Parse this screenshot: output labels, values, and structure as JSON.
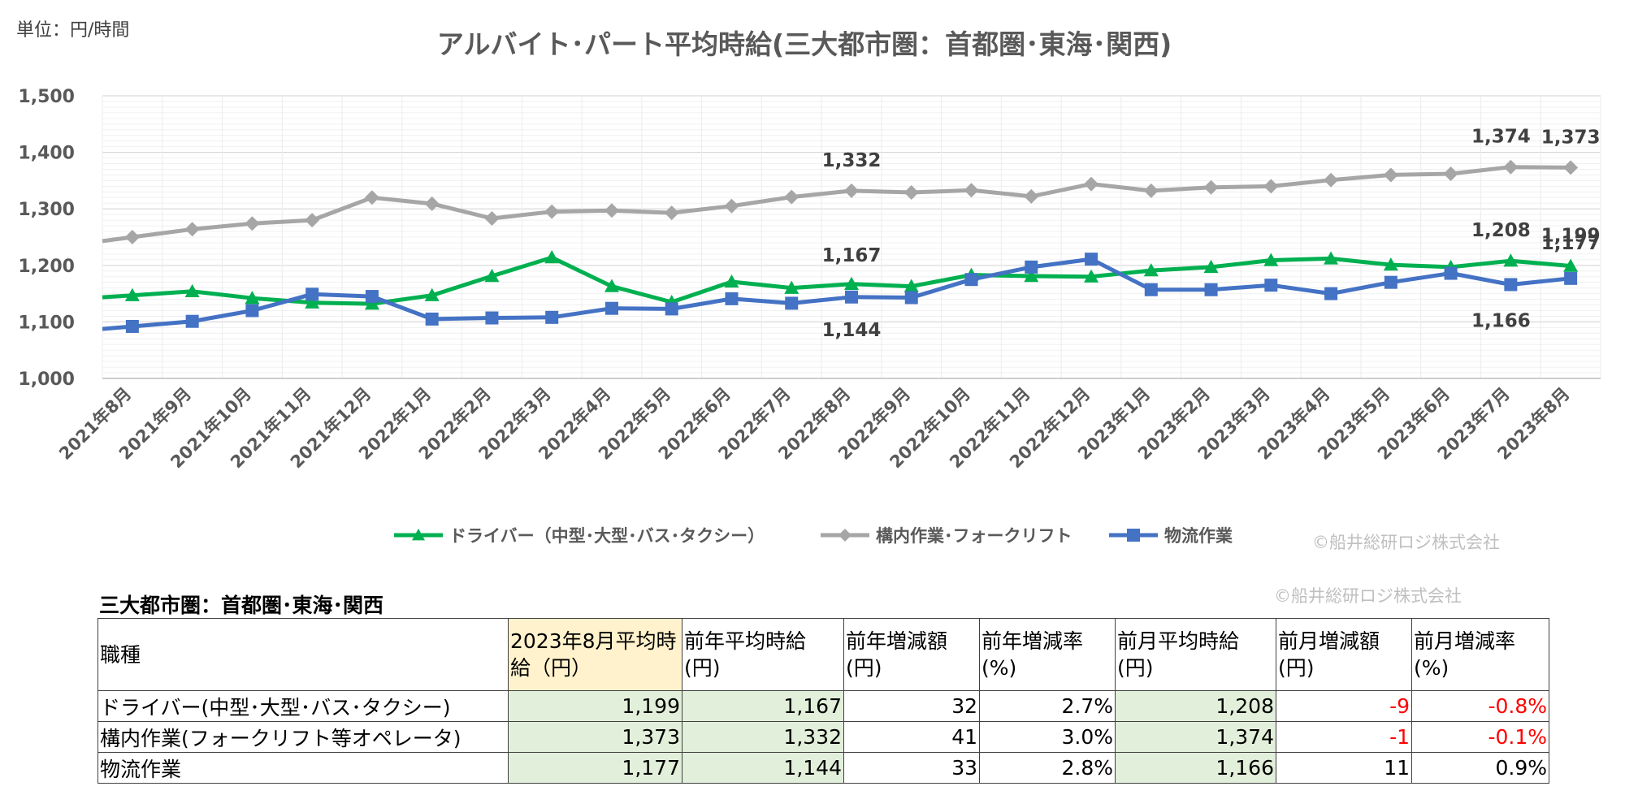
{
  "unit_label": "単位：円/時間",
  "credit": "©船井総研ロジ株式会社",
  "chart_data": {
    "type": "line",
    "title": "アルバイト･パート平均時給(三大都市圏：首都圏･東海･関西)",
    "categories": [
      "2021年8月",
      "2021年9月",
      "2021年10月",
      "2021年11月",
      "2021年12月",
      "2022年1月",
      "2022年2月",
      "2022年3月",
      "2022年4月",
      "2022年5月",
      "2022年6月",
      "2022年7月",
      "2022年8月",
      "2022年9月",
      "2022年10月",
      "2022年11月",
      "2022年12月",
      "2023年1月",
      "2023年2月",
      "2023年3月",
      "2023年4月",
      "2023年5月",
      "2023年6月",
      "2023年7月",
      "2023年8月"
    ],
    "yticks": [
      "1,000",
      "1,100",
      "1,200",
      "1,300",
      "1,400",
      "1,500"
    ],
    "ylim": [
      1000,
      1500
    ],
    "grid": true,
    "legend_position": "bottom",
    "series": [
      {
        "name": "ドライバー（中型･大型･バス･タクシー）",
        "color": "#00b050",
        "marker": "triangle",
        "values": [
          1147,
          1154,
          1142,
          1134,
          1132,
          1147,
          1181,
          1214,
          1163,
          1135,
          1171,
          1160,
          1167,
          1163,
          1183,
          1181,
          1180,
          1191,
          1197,
          1209,
          1212,
          1201,
          1197,
          1208,
          1199
        ]
      },
      {
        "name": "構内作業･フォークリフト",
        "color": "#a6a6a6",
        "marker": "diamond",
        "values": [
          1250,
          1264,
          1274,
          1280,
          1320,
          1309,
          1283,
          1295,
          1297,
          1293,
          1305,
          1321,
          1332,
          1329,
          1333,
          1322,
          1344,
          1332,
          1338,
          1340,
          1351,
          1360,
          1362,
          1374,
          1373
        ]
      },
      {
        "name": "物流作業",
        "color": "#4472c4",
        "marker": "square",
        "values": [
          1092,
          1101,
          1120,
          1149,
          1145,
          1105,
          1107,
          1108,
          1124,
          1123,
          1141,
          1133,
          1144,
          1143,
          1175,
          1197,
          1211,
          1157,
          1157,
          1165,
          1150,
          1170,
          1186,
          1166,
          1177
        ]
      }
    ],
    "data_labels": [
      {
        "series": 1,
        "index": 12,
        "text": "1,332"
      },
      {
        "series": 0,
        "index": 12,
        "text": "1,167"
      },
      {
        "series": 2,
        "index": 12,
        "text": "1,144"
      },
      {
        "series": 1,
        "index": 23,
        "text": "1,374"
      },
      {
        "series": 1,
        "index": 24,
        "text": "1,373"
      },
      {
        "series": 0,
        "index": 23,
        "text": "1,208"
      },
      {
        "series": 0,
        "index": 24,
        "text": "1,199"
      },
      {
        "series": 2,
        "index": 23,
        "text": "1,166"
      },
      {
        "series": 2,
        "index": 24,
        "text": "1,177"
      }
    ]
  },
  "table": {
    "caption": "三大都市圏：首都圏･東海･関西",
    "headers": [
      "職種",
      "2023年8月平均時給（円）",
      "前年平均時給(円)",
      "前年増減額(円)",
      "前年増減率(%)",
      "前月平均時給(円)",
      "前月増減額(円)",
      "前月増減率(%)"
    ],
    "rows": [
      [
        "ドライバー(中型･大型･バス･タクシー)",
        "1,199",
        "1,167",
        "32",
        "2.7%",
        "1,208",
        "-9",
        "-0.8%"
      ],
      [
        "構内作業(フォークリフト等オペレータ)",
        "1,373",
        "1,332",
        "41",
        "3.0%",
        "1,374",
        "-1",
        "-0.1%"
      ],
      [
        "物流作業",
        "1,177",
        "1,144",
        "33",
        "2.8%",
        "1,166",
        "11",
        "0.9%"
      ]
    ]
  }
}
